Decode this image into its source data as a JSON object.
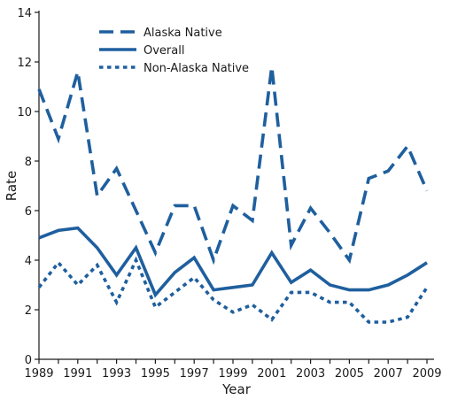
{
  "chart_data": {
    "type": "line",
    "xlabel": "Year",
    "ylabel": "Rate",
    "xlim": [
      1989,
      2009
    ],
    "ylim": [
      0,
      14
    ],
    "x": [
      1989,
      1990,
      1991,
      1992,
      1993,
      1994,
      1995,
      1996,
      1997,
      1998,
      1999,
      2000,
      2001,
      2002,
      2003,
      2004,
      2005,
      2006,
      2007,
      2008,
      2009
    ],
    "x_tick_labels": [
      "1989",
      "1991",
      "1993",
      "1995",
      "1997",
      "1999",
      "2001",
      "2003",
      "2005",
      "2007",
      "2009"
    ],
    "y_tick_labels": [
      "0",
      "2",
      "4",
      "6",
      "8",
      "10",
      "12",
      "14"
    ],
    "grid": false,
    "legend_position": "top-center",
    "series": [
      {
        "name": "Alaska Native",
        "style": "dashed",
        "color": "#1f5f9e",
        "values": [
          10.9,
          8.9,
          11.6,
          6.6,
          7.7,
          6.0,
          4.3,
          6.2,
          6.2,
          4.0,
          6.2,
          5.6,
          11.8,
          4.6,
          6.1,
          5.1,
          4.0,
          7.3,
          7.6,
          8.6,
          6.8
        ]
      },
      {
        "name": "Overall",
        "style": "solid",
        "color": "#1f5f9e",
        "values": [
          4.9,
          5.2,
          5.3,
          4.5,
          3.4,
          4.5,
          2.6,
          3.5,
          4.1,
          2.8,
          2.9,
          3.0,
          4.3,
          3.1,
          3.6,
          3.0,
          2.8,
          2.8,
          3.0,
          3.4,
          3.9
        ]
      },
      {
        "name": "Non-Alaska Native",
        "style": "dotted",
        "color": "#1f5f9e",
        "values": [
          2.9,
          3.9,
          3.0,
          3.8,
          2.3,
          4.0,
          2.1,
          2.7,
          3.3,
          2.4,
          1.9,
          2.2,
          1.6,
          2.7,
          2.7,
          2.3,
          2.3,
          1.5,
          1.5,
          1.7,
          2.9
        ]
      }
    ]
  }
}
